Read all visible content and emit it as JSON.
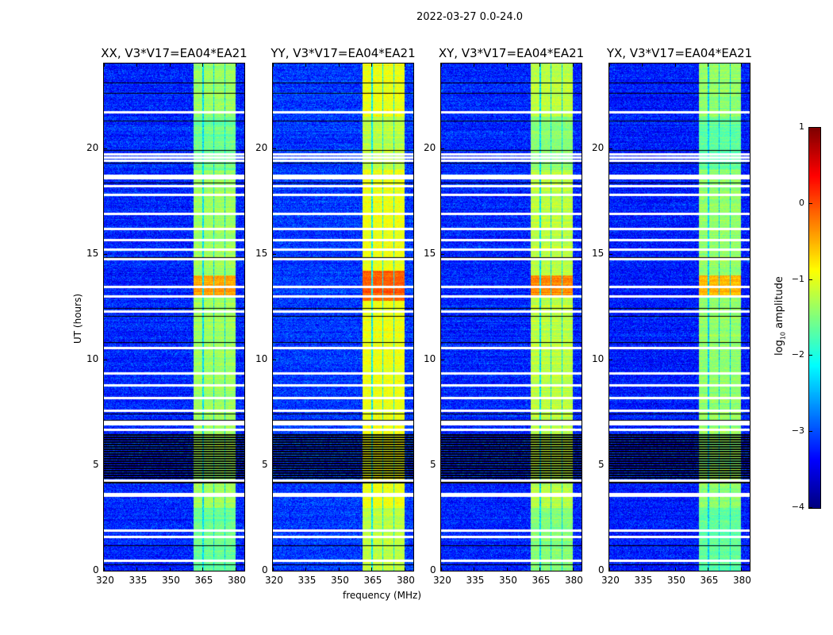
{
  "figure": {
    "title": "2022-03-27 0.0-24.0",
    "xlabel": "frequency (MHz)",
    "ylabel": "UT (hours)"
  },
  "chart_data": {
    "type": "heatmap",
    "title": "2022-03-27 0.0-24.0",
    "xlabel": "frequency (MHz)",
    "ylabel": "UT (hours)",
    "xlim": [
      320,
      384
    ],
    "ylim": [
      0,
      24
    ],
    "xticks": [
      "320",
      "335",
      "350",
      "365",
      "380"
    ],
    "xtick_values": [
      320,
      335,
      350,
      365,
      380
    ],
    "yticks": [
      "0",
      "5",
      "10",
      "15",
      "20"
    ],
    "ytick_values": [
      0,
      5,
      10,
      15,
      20
    ],
    "colormap": "jet",
    "colorbar": {
      "label_main": "log",
      "label_sub": "10",
      "label_rest": " amplitude",
      "range": [
        -4,
        1
      ],
      "ticks": [
        "1",
        "0",
        "−1",
        "−2",
        "−3",
        "−4"
      ],
      "tick_values": [
        1,
        0,
        -1,
        -2,
        -3,
        -4
      ]
    },
    "sub_bands_mhz": [
      [
        360.5,
        364.8
      ],
      [
        365.3,
        369.6
      ],
      [
        370.1,
        374.6
      ],
      [
        375.1,
        379.8
      ]
    ],
    "flagged_white_hours": [
      21.7,
      19.7,
      19.55,
      19.4,
      18.7,
      18.6,
      18.2,
      17.8,
      16.9,
      16.2,
      15.65,
      15.2,
      14.75,
      13.45,
      13.0,
      12.3,
      10.55,
      9.35,
      8.8,
      8.2,
      7.6,
      7.05,
      6.95,
      6.7,
      4.3,
      3.65,
      3.55,
      1.9,
      1.6,
      0.5
    ],
    "black_line_hours": [
      23.1,
      22.6,
      21.3,
      19.9,
      19.3,
      18.35,
      14.85,
      12.45,
      12.05,
      10.8,
      7.45,
      7.15,
      1.2,
      0.3
    ],
    "dense_black_range_hours": [
      4.1,
      6.5
    ],
    "series": [
      {
        "name": "XX, V3*V17=EA04*EA21",
        "background_level": -3.2,
        "band_level": -1.35,
        "peak_level": -0.4,
        "peak_hours": [
          13.0,
          14.0
        ]
      },
      {
        "name": "YY, V3*V17=EA04*EA21",
        "background_level": -3.1,
        "band_level": -0.95,
        "peak_level": -0.1,
        "peak_hours": [
          12.8,
          14.2
        ]
      },
      {
        "name": "XY, V3*V17=EA04*EA21",
        "background_level": -3.2,
        "band_level": -1.2,
        "peak_level": -0.3,
        "peak_hours": [
          13.0,
          14.0
        ]
      },
      {
        "name": "YX, V3*V17=EA04*EA21",
        "background_level": -3.25,
        "band_level": -1.4,
        "peak_level": -0.5,
        "peak_hours": [
          13.0,
          14.0
        ]
      }
    ]
  }
}
